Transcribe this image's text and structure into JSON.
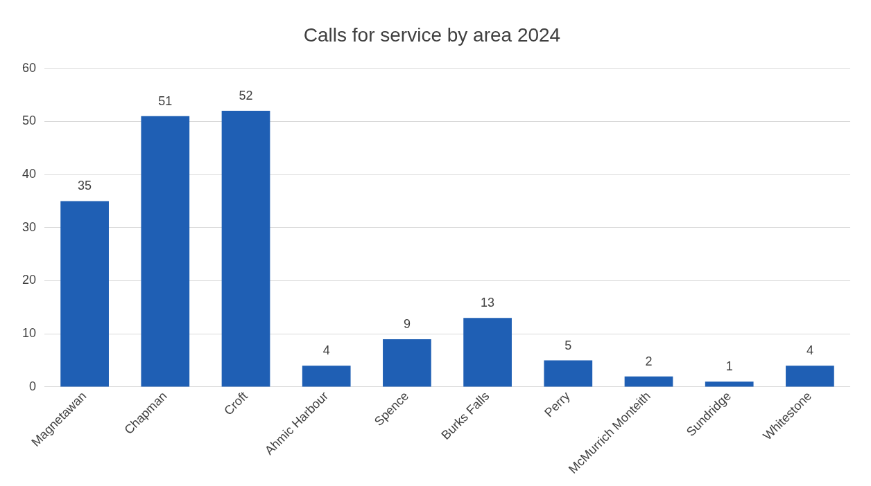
{
  "chart_data": {
    "type": "bar",
    "title": "Calls for service by area 2024",
    "categories": [
      "Magnetawan",
      "Chapman",
      "Croft",
      "Ahmic Harbour",
      "Spence",
      "Burks Falls",
      "Perry",
      "McMurrich Monteith",
      "Sundridge",
      "Whitestone"
    ],
    "values": [
      35,
      51,
      52,
      4,
      9,
      13,
      5,
      2,
      1,
      4
    ],
    "color": "#1f5fb4",
    "ylim": [
      0,
      60
    ],
    "yticks": [
      0,
      10,
      20,
      30,
      40,
      50,
      60
    ],
    "grid": "y",
    "data_labels": true
  }
}
